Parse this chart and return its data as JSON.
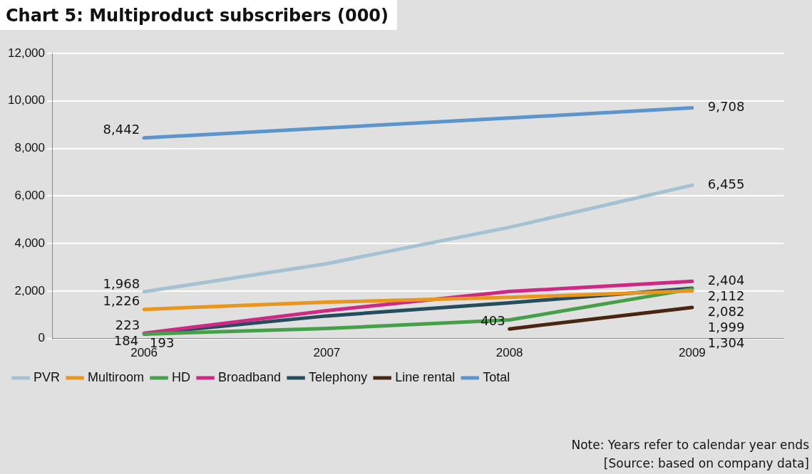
{
  "chart_data": {
    "type": "line",
    "title": "Chart 5: Multiproduct subscribers (000)",
    "categories": [
      "2006",
      "2007",
      "2008",
      "2009"
    ],
    "series": [
      {
        "name": "PVR",
        "color": "#a5c2d3",
        "values": [
          1968,
          3150,
          4680,
          6455
        ],
        "value_labels": [
          "1,968",
          null,
          null,
          "6,455"
        ]
      },
      {
        "name": "Multiroom",
        "color": "#e8961e",
        "values": [
          1226,
          1530,
          1730,
          1999
        ],
        "value_labels": [
          "1,226",
          null,
          null,
          "1,999"
        ]
      },
      {
        "name": "HD",
        "color": "#45a049",
        "values": [
          184,
          420,
          780,
          2082
        ],
        "value_labels": [
          "184",
          null,
          null,
          "2,082"
        ]
      },
      {
        "name": "Broadband",
        "color": "#cc2a84",
        "values": [
          223,
          1170,
          1980,
          2404
        ],
        "value_labels": [
          "223",
          null,
          null,
          "2,404"
        ]
      },
      {
        "name": "Telephony",
        "color": "#264d5e",
        "values": [
          193,
          950,
          1500,
          2112
        ],
        "value_labels": [
          "193",
          null,
          null,
          "2,112"
        ]
      },
      {
        "name": "Line rental",
        "color": "#4a2511",
        "values": [
          null,
          null,
          403,
          1304
        ],
        "value_labels": [
          null,
          null,
          "403",
          "1,304"
        ]
      },
      {
        "name": "Total",
        "color": "#5b95cb",
        "values": [
          8442,
          8860,
          9280,
          9708
        ],
        "value_labels": [
          "8,442",
          null,
          null,
          "9,708"
        ]
      }
    ],
    "ylim": [
      0,
      12000
    ],
    "yticks": [
      {
        "value": 0,
        "label": "0"
      },
      {
        "value": 2000,
        "label": "2,000"
      },
      {
        "value": 4000,
        "label": "4,000"
      },
      {
        "value": 6000,
        "label": "6,000"
      },
      {
        "value": 8000,
        "label": "8,000"
      },
      {
        "value": 10000,
        "label": "10,000"
      },
      {
        "value": 12000,
        "label": "12,000"
      }
    ],
    "grid": "y",
    "legend": "bottom",
    "marker": "none",
    "line_style": "solid",
    "annotations": [
      "Note:  Years refer to calendar year ends",
      "[Source: based on company data]"
    ]
  }
}
